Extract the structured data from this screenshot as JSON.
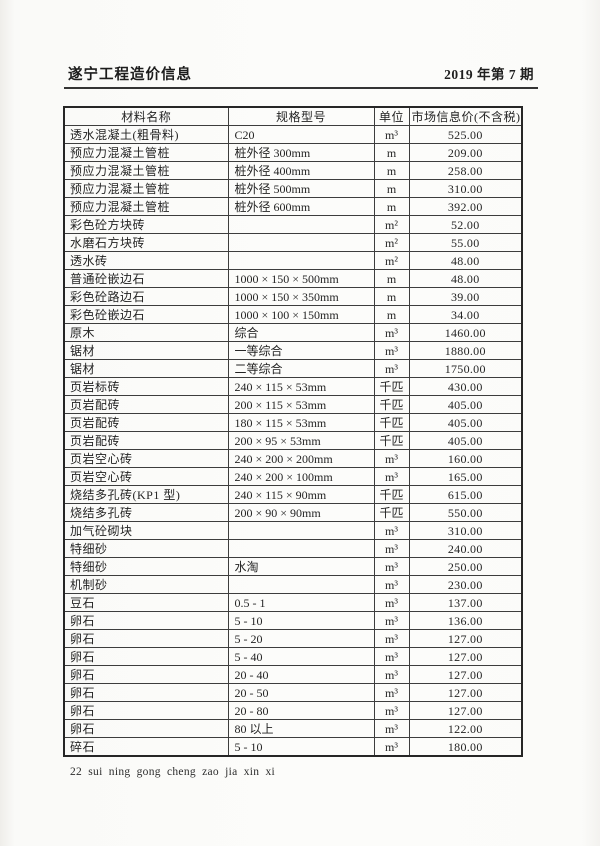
{
  "header": {
    "journal_title": "遂宁工程造价信息",
    "issue": "2019 年第 7 期"
  },
  "footer": {
    "page_label": "22  sui ning gong cheng zao jia xin xi"
  },
  "table": {
    "columns": [
      "材料名称",
      "规格型号",
      "单位",
      "市场信息价(不含税)"
    ],
    "rows": [
      [
        "透水混凝土(粗骨料)",
        "C20",
        "m³",
        "525.00"
      ],
      [
        "预应力混凝土管桩",
        "桩外径 300mm",
        "m",
        "209.00"
      ],
      [
        "预应力混凝土管桩",
        "桩外径 400mm",
        "m",
        "258.00"
      ],
      [
        "预应力混凝土管桩",
        "桩外径 500mm",
        "m",
        "310.00"
      ],
      [
        "预应力混凝土管桩",
        "桩外径 600mm",
        "m",
        "392.00"
      ],
      [
        "彩色砼方块砖",
        "",
        "m²",
        "52.00"
      ],
      [
        "水磨石方块砖",
        "",
        "m²",
        "55.00"
      ],
      [
        "透水砖",
        "",
        "m²",
        "48.00"
      ],
      [
        "普通砼嵌边石",
        "1000 × 150 × 500mm",
        "m",
        "48.00"
      ],
      [
        "彩色砼路边石",
        "1000 × 150 × 350mm",
        "m",
        "39.00"
      ],
      [
        "彩色砼嵌边石",
        "1000 × 100 × 150mm",
        "m",
        "34.00"
      ],
      [
        "原木",
        "综合",
        "m³",
        "1460.00"
      ],
      [
        "锯材",
        "一等综合",
        "m³",
        "1880.00"
      ],
      [
        "锯材",
        "二等综合",
        "m³",
        "1750.00"
      ],
      [
        "页岩标砖",
        "240 × 115 × 53mm",
        "千匹",
        "430.00"
      ],
      [
        "页岩配砖",
        "200 × 115 × 53mm",
        "千匹",
        "405.00"
      ],
      [
        "页岩配砖",
        "180 × 115 × 53mm",
        "千匹",
        "405.00"
      ],
      [
        "页岩配砖",
        "200 × 95 × 53mm",
        "千匹",
        "405.00"
      ],
      [
        "页岩空心砖",
        "240 × 200 × 200mm",
        "m³",
        "160.00"
      ],
      [
        "页岩空心砖",
        "240 × 200 × 100mm",
        "m³",
        "165.00"
      ],
      [
        "烧结多孔砖(KP1 型)",
        "240 × 115 × 90mm",
        "千匹",
        "615.00"
      ],
      [
        "烧结多孔砖",
        "200 × 90 × 90mm",
        "千匹",
        "550.00"
      ],
      [
        "加气砼砌块",
        "",
        "m³",
        "310.00"
      ],
      [
        "特细砂",
        "",
        "m³",
        "240.00"
      ],
      [
        "特细砂",
        "水淘",
        "m³",
        "250.00"
      ],
      [
        "机制砂",
        "",
        "m³",
        "230.00"
      ],
      [
        "豆石",
        "0.5 - 1",
        "m³",
        "137.00"
      ],
      [
        "卵石",
        "5 - 10",
        "m³",
        "136.00"
      ],
      [
        "卵石",
        "5 - 20",
        "m³",
        "127.00"
      ],
      [
        "卵石",
        "5 - 40",
        "m³",
        "127.00"
      ],
      [
        "卵石",
        "20 - 40",
        "m³",
        "127.00"
      ],
      [
        "卵石",
        "20 - 50",
        "m³",
        "127.00"
      ],
      [
        "卵石",
        "20 - 80",
        "m³",
        "127.00"
      ],
      [
        "卵石",
        "80 以上",
        "m³",
        "122.00"
      ],
      [
        "碎石",
        "5 - 10",
        "m³",
        "180.00"
      ]
    ]
  },
  "colors": {
    "text": "#242424",
    "border": "#3d3d3d",
    "paper": "#fcfcfa"
  }
}
